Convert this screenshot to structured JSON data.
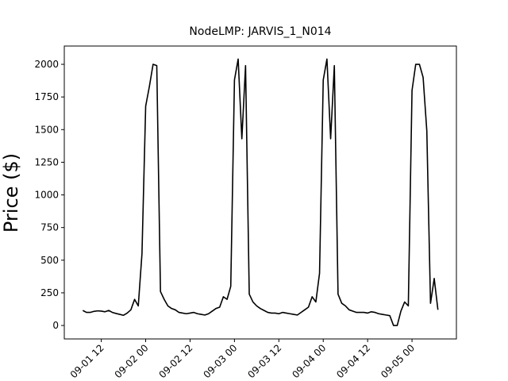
{
  "chart_data": {
    "type": "line",
    "title": "NodeLMP: JARVIS_1_N014",
    "y_label": "Price ($)",
    "xlim": [
      "09-01 02",
      "09-05 12"
    ],
    "ylim": [
      -103,
      2140
    ],
    "xticks": [
      "09-01 12",
      "09-02 00",
      "09-02 12",
      "09-03 00",
      "09-03 12",
      "09-04 00",
      "09-04 12",
      "09-05 00"
    ],
    "yticks": [
      0,
      250,
      500,
      750,
      1000,
      1250,
      1500,
      1750,
      2000
    ],
    "grid": false,
    "x": [
      "09-01 07",
      "09-01 08",
      "09-01 09",
      "09-01 10",
      "09-01 11",
      "09-01 12",
      "09-01 13",
      "09-01 14",
      "09-01 15",
      "09-01 16",
      "09-01 17",
      "09-01 18",
      "09-01 19",
      "09-01 20",
      "09-01 21",
      "09-01 22",
      "09-01 23",
      "09-02 00",
      "09-02 01",
      "09-02 02",
      "09-02 03",
      "09-02 04",
      "09-02 05",
      "09-02 06",
      "09-02 07",
      "09-02 08",
      "09-02 09",
      "09-02 10",
      "09-02 11",
      "09-02 12",
      "09-02 13",
      "09-02 14",
      "09-02 15",
      "09-02 16",
      "09-02 17",
      "09-02 18",
      "09-02 19",
      "09-02 20",
      "09-02 21",
      "09-02 22",
      "09-02 23",
      "09-03 00",
      "09-03 01",
      "09-03 02",
      "09-03 03",
      "09-03 04",
      "09-03 05",
      "09-03 06",
      "09-03 07",
      "09-03 08",
      "09-03 09",
      "09-03 10",
      "09-03 11",
      "09-03 12",
      "09-03 13",
      "09-03 14",
      "09-03 15",
      "09-03 16",
      "09-03 17",
      "09-03 18",
      "09-03 19",
      "09-03 20",
      "09-03 21",
      "09-03 22",
      "09-03 23",
      "09-04 00",
      "09-04 01",
      "09-04 02",
      "09-04 03",
      "09-04 04",
      "09-04 05",
      "09-04 06",
      "09-04 07",
      "09-04 08",
      "09-04 09",
      "09-04 10",
      "09-04 11",
      "09-04 12",
      "09-04 13",
      "09-04 14",
      "09-04 15",
      "09-04 16",
      "09-04 17",
      "09-04 18",
      "09-04 19",
      "09-04 20",
      "09-04 21",
      "09-04 22",
      "09-04 23",
      "09-05 00",
      "09-05 01",
      "09-05 02",
      "09-05 03",
      "09-05 04",
      "09-05 05",
      "09-05 06",
      "09-05 07"
    ],
    "series": [
      {
        "name": "Price",
        "color": "#000000",
        "values": [
          115,
          100,
          100,
          108,
          112,
          110,
          105,
          115,
          100,
          92,
          85,
          78,
          95,
          120,
          200,
          150,
          550,
          1680,
          1830,
          2000,
          1990,
          260,
          200,
          150,
          130,
          120,
          100,
          95,
          90,
          95,
          100,
          90,
          85,
          80,
          90,
          110,
          130,
          140,
          220,
          200,
          300,
          1880,
          2040,
          1430,
          1990,
          240,
          180,
          150,
          130,
          115,
          100,
          95,
          95,
          90,
          100,
          95,
          90,
          85,
          80,
          100,
          120,
          140,
          220,
          180,
          400,
          1880,
          2040,
          1430,
          1990,
          240,
          170,
          150,
          120,
          110,
          100,
          100,
          100,
          95,
          105,
          100,
          90,
          85,
          80,
          75,
          0,
          0,
          110,
          180,
          150,
          1800,
          2000,
          2000,
          1900,
          1490,
          170,
          360,
          120
        ]
      }
    ]
  }
}
